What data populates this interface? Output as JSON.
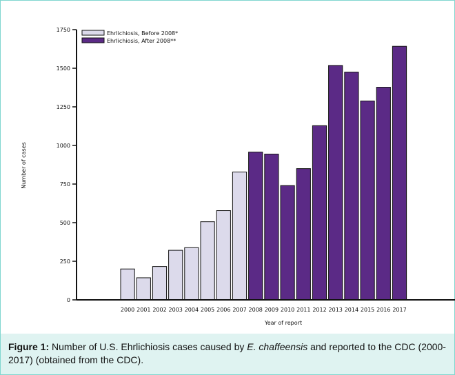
{
  "chart_data": {
    "type": "bar",
    "title": "",
    "xlabel": "Year of report",
    "ylabel": "Number of cases",
    "ylim": [
      0,
      1750
    ],
    "yticks": [
      0,
      250,
      500,
      750,
      1000,
      1250,
      1500,
      1750
    ],
    "grid": false,
    "legend_position": "top-left",
    "categories": [
      "2000",
      "2001",
      "2002",
      "2003",
      "2004",
      "2005",
      "2006",
      "2007",
      "2008",
      "2009",
      "2010",
      "2011",
      "2012",
      "2013",
      "2014",
      "2015",
      "2016",
      "2017"
    ],
    "series": [
      {
        "name": "Ehrlichiosis, Before 2008*",
        "color": "#dcdaeb",
        "values": [
          200,
          143,
          216,
          321,
          338,
          506,
          578,
          828,
          null,
          null,
          null,
          null,
          null,
          null,
          null,
          null,
          null,
          null
        ]
      },
      {
        "name": "Ehrlichiosis, After 2008**",
        "color": "#5b2a86",
        "values": [
          null,
          null,
          null,
          null,
          null,
          null,
          null,
          null,
          957,
          944,
          740,
          850,
          1128,
          1518,
          1475,
          1288,
          1377,
          1642
        ]
      }
    ]
  },
  "caption": {
    "label": "Figure 1:",
    "text_before": " Number of U.S. Ehrlichiosis cases caused by ",
    "species": "E. chaffeensis",
    "text_after": " and reported to the CDC (2000-2017) (obtained from the CDC)."
  }
}
